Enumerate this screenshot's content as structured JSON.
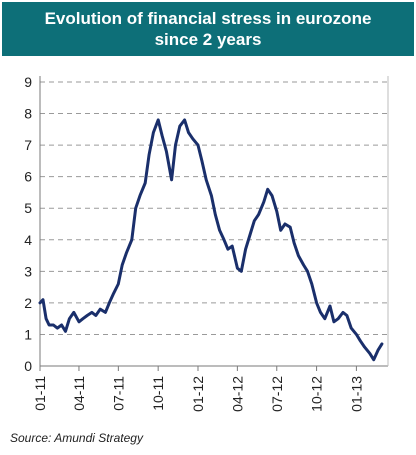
{
  "header": {
    "title_line1": "Evolution of financial stress in eurozone",
    "title_line2": "since 2 years",
    "background_color": "#0d6f78"
  },
  "footer": {
    "source": "Source: Amundi Strategy"
  },
  "chart_data": {
    "type": "line",
    "title": "Evolution of financial stress in eurozone since 2 years",
    "xlabel": "",
    "ylabel": "",
    "ylim": [
      0,
      9
    ],
    "yticks": [
      0,
      1,
      2,
      3,
      4,
      5,
      6,
      7,
      8,
      9
    ],
    "xlim": [
      "2011-01-01",
      "2013-03-15"
    ],
    "xticks": [
      {
        "label": "01-11",
        "date": "2011-01-01"
      },
      {
        "label": "04-11",
        "date": "2011-04-01"
      },
      {
        "label": "07-11",
        "date": "2011-07-01"
      },
      {
        "label": "10-11",
        "date": "2011-10-01"
      },
      {
        "label": "01-12",
        "date": "2012-01-01"
      },
      {
        "label": "04-12",
        "date": "2012-04-01"
      },
      {
        "label": "07-12",
        "date": "2012-07-01"
      },
      {
        "label": "10-12",
        "date": "2012-10-01"
      },
      {
        "label": "01-13",
        "date": "2013-01-01"
      }
    ],
    "grid": {
      "horizontal": true,
      "style": "dashed"
    },
    "legend": "none",
    "line_color": "#1a2f6b",
    "series": [
      {
        "x": [
          "2011-01-01",
          "2011-01-08",
          "2011-01-15",
          "2011-01-22",
          "2011-02-01",
          "2011-02-10",
          "2011-02-20",
          "2011-03-01",
          "2011-03-10",
          "2011-03-20",
          "2011-04-01",
          "2011-04-10",
          "2011-04-20",
          "2011-05-01",
          "2011-05-10",
          "2011-05-20",
          "2011-06-01",
          "2011-06-10",
          "2011-06-20",
          "2011-07-01",
          "2011-07-10",
          "2011-07-20",
          "2011-08-01",
          "2011-08-10",
          "2011-08-20",
          "2011-09-01",
          "2011-09-10",
          "2011-09-20",
          "2011-10-01",
          "2011-10-10",
          "2011-10-20",
          "2011-11-01",
          "2011-11-10",
          "2011-11-20",
          "2011-12-01",
          "2011-12-10",
          "2011-12-20",
          "2012-01-01",
          "2012-01-10",
          "2012-01-20",
          "2012-02-01",
          "2012-02-10",
          "2012-02-20",
          "2012-03-01",
          "2012-03-10",
          "2012-03-20",
          "2012-04-01",
          "2012-04-10",
          "2012-04-20",
          "2012-05-01",
          "2012-05-10",
          "2012-05-20",
          "2012-06-01",
          "2012-06-10",
          "2012-06-20",
          "2012-07-01",
          "2012-07-10",
          "2012-07-20",
          "2012-08-01",
          "2012-08-10",
          "2012-08-20",
          "2012-09-01",
          "2012-09-10",
          "2012-09-20",
          "2012-10-01",
          "2012-10-10",
          "2012-10-20",
          "2012-11-01",
          "2012-11-10",
          "2012-11-20",
          "2012-12-01",
          "2012-12-10",
          "2012-12-20",
          "2013-01-01",
          "2013-01-10",
          "2013-01-20",
          "2013-02-01",
          "2013-02-10",
          "2013-02-20",
          "2013-03-01"
        ],
        "values": [
          2.0,
          2.1,
          1.5,
          1.3,
          1.3,
          1.2,
          1.3,
          1.1,
          1.5,
          1.7,
          1.4,
          1.5,
          1.6,
          1.7,
          1.6,
          1.8,
          1.7,
          2.0,
          2.3,
          2.6,
          3.2,
          3.6,
          4.0,
          5.0,
          5.4,
          5.8,
          6.7,
          7.4,
          7.8,
          7.3,
          6.8,
          5.9,
          7.0,
          7.6,
          7.8,
          7.4,
          7.2,
          7.0,
          6.5,
          5.9,
          5.4,
          4.8,
          4.3,
          4.0,
          3.7,
          3.8,
          3.1,
          3.0,
          3.7,
          4.2,
          4.6,
          4.8,
          5.2,
          5.6,
          5.4,
          4.9,
          4.3,
          4.5,
          4.4,
          3.9,
          3.5,
          3.2,
          3.0,
          2.6,
          2.0,
          1.7,
          1.5,
          1.9,
          1.4,
          1.5,
          1.7,
          1.6,
          1.2,
          1.0,
          0.8,
          0.6,
          0.4,
          0.2,
          0.5,
          0.7
        ]
      }
    ]
  }
}
